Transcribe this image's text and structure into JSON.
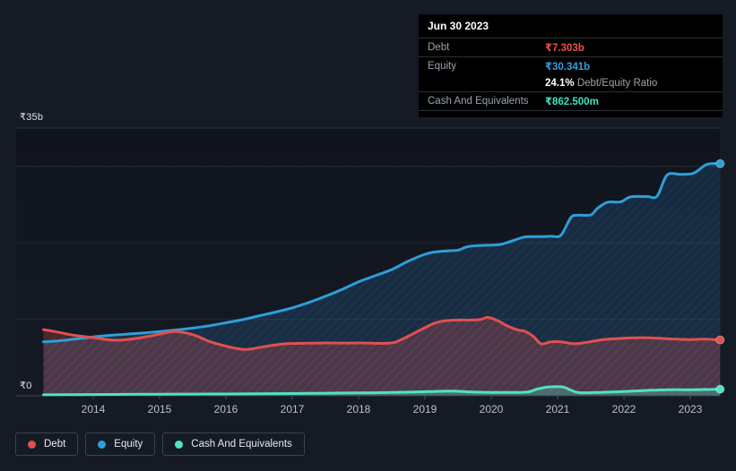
{
  "tooltip": {
    "date": "Jun 30 2023",
    "debt_label": "Debt",
    "debt_value": "₹7.303b",
    "equity_label": "Equity",
    "equity_value": "₹30.341b",
    "ratio_value": "24.1%",
    "ratio_label": "Debt/Equity Ratio",
    "cash_label": "Cash And Equivalents",
    "cash_value": "₹862.500m"
  },
  "axis": {
    "y_max_label": "₹35b",
    "y_zero_label": "₹0",
    "years": [
      "2014",
      "2015",
      "2016",
      "2017",
      "2018",
      "2019",
      "2020",
      "2021",
      "2022",
      "2023"
    ]
  },
  "legend": {
    "items": [
      {
        "label": "Debt",
        "color": "#e25050"
      },
      {
        "label": "Equity",
        "color": "#2d9fd8"
      },
      {
        "label": "Cash And Equivalents",
        "color": "#4fe3c6"
      }
    ]
  },
  "colors": {
    "debt_line": "#e25050",
    "equity_line": "#2d9fd8",
    "cash_line": "#4fe3c6",
    "debt_fill": "rgba(224,80,84,0.26)",
    "equity_fill": "rgba(45,130,205,0.20)",
    "cash_fill": "rgba(79,227,198,0.30)",
    "debt_value_text": "#f04f46",
    "equity_value_text": "#2f9fe5",
    "cash_value_text": "#3ce2c3",
    "grid_major": "#3c4350",
    "grid_top": "#2d3442",
    "grid_minor": "#232a36",
    "axis_tick": "#4a5260"
  },
  "chart_data": {
    "type": "area",
    "title": "",
    "x_unit": "year",
    "y_unit": "₹ billions",
    "ylim": [
      0,
      35
    ],
    "y_gridlines": [
      0,
      10,
      20,
      30,
      35
    ],
    "x_range": [
      2013.25,
      2023.45
    ],
    "x_tick_years": [
      2014,
      2015,
      2016,
      2017,
      2018,
      2019,
      2020,
      2021,
      2022,
      2023
    ],
    "grid": "horizontal-only",
    "legend_position": "bottom-left",
    "series": [
      {
        "name": "Debt",
        "end_value_label": "₹7.303b",
        "points": [
          [
            2013.25,
            8.65
          ],
          [
            2013.45,
            8.35
          ],
          [
            2013.65,
            8.0
          ],
          [
            2013.85,
            7.75
          ],
          [
            2014.05,
            7.55
          ],
          [
            2014.25,
            7.3
          ],
          [
            2014.45,
            7.3
          ],
          [
            2014.65,
            7.5
          ],
          [
            2014.85,
            7.8
          ],
          [
            2015.05,
            8.15
          ],
          [
            2015.2,
            8.4
          ],
          [
            2015.35,
            8.3
          ],
          [
            2015.55,
            7.85
          ],
          [
            2015.75,
            7.1
          ],
          [
            2015.95,
            6.6
          ],
          [
            2016.15,
            6.2
          ],
          [
            2016.3,
            6.05
          ],
          [
            2016.5,
            6.3
          ],
          [
            2016.7,
            6.6
          ],
          [
            2016.9,
            6.8
          ],
          [
            2017.1,
            6.85
          ],
          [
            2017.4,
            6.9
          ],
          [
            2017.8,
            6.9
          ],
          [
            2018.1,
            6.9
          ],
          [
            2018.35,
            6.85
          ],
          [
            2018.55,
            7.0
          ],
          [
            2018.75,
            7.8
          ],
          [
            2019.0,
            8.9
          ],
          [
            2019.15,
            9.5
          ],
          [
            2019.3,
            9.8
          ],
          [
            2019.5,
            9.9
          ],
          [
            2019.7,
            9.9
          ],
          [
            2019.85,
            10.0
          ],
          [
            2019.95,
            10.25
          ],
          [
            2020.1,
            9.8
          ],
          [
            2020.25,
            9.1
          ],
          [
            2020.4,
            8.6
          ],
          [
            2020.5,
            8.45
          ],
          [
            2020.63,
            7.8
          ],
          [
            2020.75,
            6.8
          ],
          [
            2020.9,
            7.05
          ],
          [
            2021.05,
            7.05
          ],
          [
            2021.25,
            6.8
          ],
          [
            2021.45,
            7.0
          ],
          [
            2021.65,
            7.3
          ],
          [
            2021.85,
            7.45
          ],
          [
            2022.05,
            7.55
          ],
          [
            2022.3,
            7.6
          ],
          [
            2022.55,
            7.5
          ],
          [
            2022.8,
            7.4
          ],
          [
            2023.0,
            7.35
          ],
          [
            2023.2,
            7.4
          ],
          [
            2023.45,
            7.303
          ]
        ]
      },
      {
        "name": "Equity",
        "end_value_label": "₹30.341b",
        "points": [
          [
            2013.25,
            7.05
          ],
          [
            2013.5,
            7.2
          ],
          [
            2013.75,
            7.45
          ],
          [
            2014.0,
            7.7
          ],
          [
            2014.25,
            7.9
          ],
          [
            2014.5,
            8.05
          ],
          [
            2014.75,
            8.2
          ],
          [
            2015.0,
            8.4
          ],
          [
            2015.25,
            8.6
          ],
          [
            2015.5,
            8.85
          ],
          [
            2015.75,
            9.15
          ],
          [
            2016.0,
            9.55
          ],
          [
            2016.25,
            9.95
          ],
          [
            2016.5,
            10.45
          ],
          [
            2016.75,
            10.95
          ],
          [
            2017.0,
            11.5
          ],
          [
            2017.25,
            12.2
          ],
          [
            2017.5,
            13.0
          ],
          [
            2017.75,
            13.9
          ],
          [
            2018.0,
            14.9
          ],
          [
            2018.25,
            15.7
          ],
          [
            2018.5,
            16.5
          ],
          [
            2018.75,
            17.6
          ],
          [
            2019.0,
            18.5
          ],
          [
            2019.15,
            18.8
          ],
          [
            2019.35,
            18.95
          ],
          [
            2019.5,
            19.05
          ],
          [
            2019.65,
            19.5
          ],
          [
            2019.85,
            19.65
          ],
          [
            2020.0,
            19.7
          ],
          [
            2020.15,
            19.8
          ],
          [
            2020.3,
            20.2
          ],
          [
            2020.5,
            20.75
          ],
          [
            2020.7,
            20.8
          ],
          [
            2020.9,
            20.85
          ],
          [
            2021.05,
            21.0
          ],
          [
            2021.2,
            23.3
          ],
          [
            2021.3,
            23.6
          ],
          [
            2021.5,
            23.65
          ],
          [
            2021.6,
            24.5
          ],
          [
            2021.75,
            25.3
          ],
          [
            2021.95,
            25.35
          ],
          [
            2022.1,
            26.0
          ],
          [
            2022.35,
            26.05
          ],
          [
            2022.5,
            26.1
          ],
          [
            2022.65,
            28.85
          ],
          [
            2022.85,
            28.95
          ],
          [
            2023.05,
            29.1
          ],
          [
            2023.25,
            30.25
          ],
          [
            2023.45,
            30.341
          ]
        ]
      },
      {
        "name": "Cash And Equivalents",
        "end_value_label": "₹862.500m",
        "points": [
          [
            2013.25,
            0.13
          ],
          [
            2013.75,
            0.15
          ],
          [
            2014.25,
            0.17
          ],
          [
            2014.75,
            0.2
          ],
          [
            2015.25,
            0.22
          ],
          [
            2015.75,
            0.23
          ],
          [
            2016.25,
            0.25
          ],
          [
            2016.75,
            0.28
          ],
          [
            2017.25,
            0.32
          ],
          [
            2017.75,
            0.36
          ],
          [
            2018.25,
            0.4
          ],
          [
            2018.75,
            0.48
          ],
          [
            2019.1,
            0.55
          ],
          [
            2019.4,
            0.62
          ],
          [
            2019.7,
            0.5
          ],
          [
            2020.0,
            0.45
          ],
          [
            2020.3,
            0.44
          ],
          [
            2020.55,
            0.5
          ],
          [
            2020.7,
            0.9
          ],
          [
            2020.85,
            1.15
          ],
          [
            2021.0,
            1.18
          ],
          [
            2021.1,
            1.1
          ],
          [
            2021.3,
            0.45
          ],
          [
            2021.55,
            0.42
          ],
          [
            2021.8,
            0.5
          ],
          [
            2022.1,
            0.6
          ],
          [
            2022.4,
            0.72
          ],
          [
            2022.7,
            0.8
          ],
          [
            2023.0,
            0.78
          ],
          [
            2023.2,
            0.82
          ],
          [
            2023.45,
            0.8625
          ]
        ]
      }
    ]
  }
}
